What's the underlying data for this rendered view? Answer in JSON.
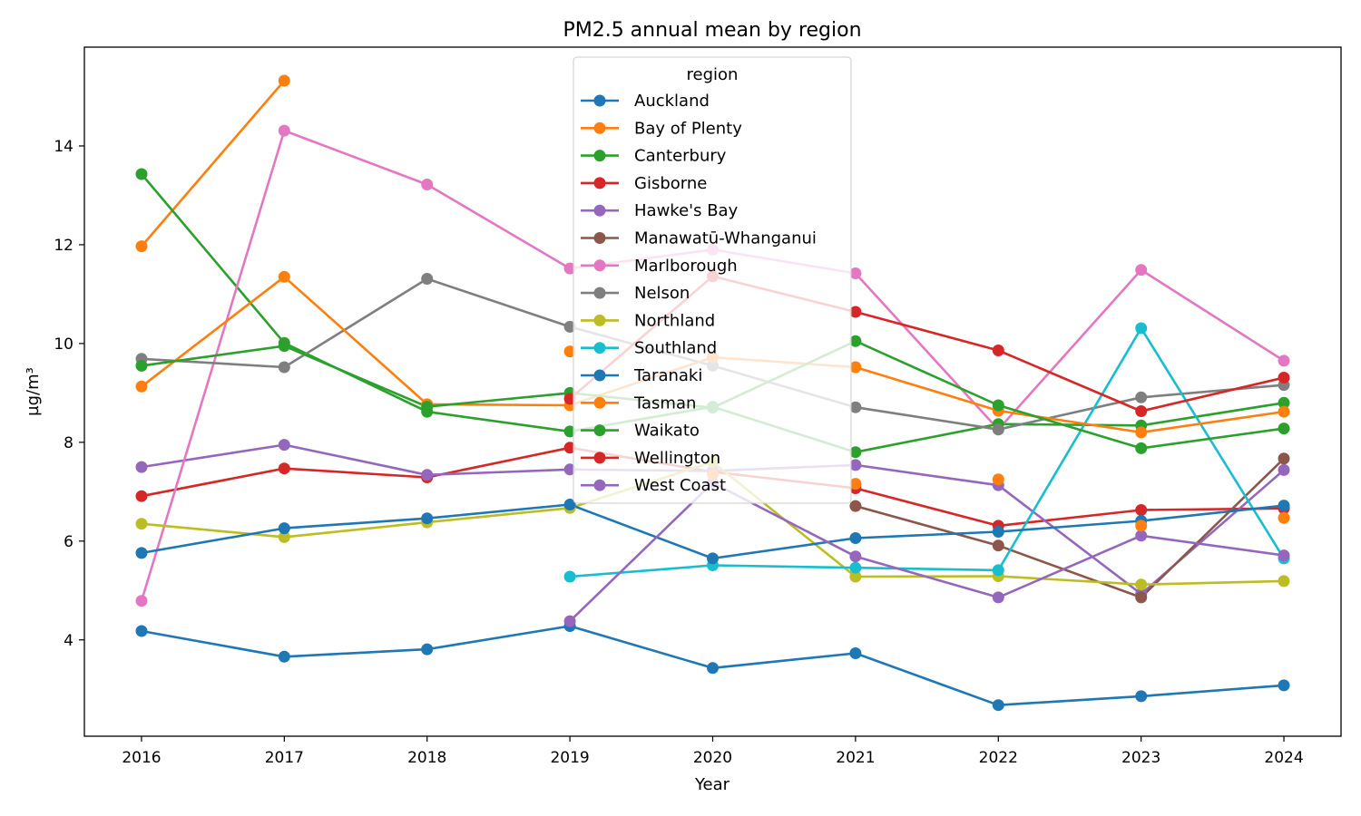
{
  "chart_data": {
    "type": "line",
    "title": "PM2.5 annual mean by region",
    "xlabel": "Year",
    "ylabel": "µg/m³",
    "x": [
      2016,
      2017,
      2018,
      2019,
      2020,
      2021,
      2022,
      2023,
      2024
    ],
    "x_ticks": [
      "2016",
      "2017",
      "2018",
      "2019",
      "2020",
      "2021",
      "2022",
      "2023",
      "2024"
    ],
    "xlim": [
      2015.6,
      2024.4
    ],
    "ylim": [
      2.05,
      16.0
    ],
    "y_ticks": [
      4,
      6,
      8,
      10,
      12,
      14
    ],
    "grid": false,
    "legend": {
      "title": "region",
      "placement": "top-center"
    },
    "series": [
      {
        "name": "Auckland",
        "color": "#1f77b4",
        "values": [
          4.18,
          3.66,
          3.81,
          4.28,
          3.43,
          3.73,
          2.68,
          2.86,
          3.08
        ]
      },
      {
        "name": "Bay of Plenty",
        "color": "#ff7f0e",
        "values": [
          11.97,
          15.32,
          null,
          null,
          null,
          null,
          null,
          null,
          null
        ]
      },
      {
        "name": "Canterbury",
        "color": "#2ca02c",
        "values": [
          13.43,
          10.01,
          8.62,
          8.22,
          8.72,
          7.8,
          8.37,
          8.34,
          8.8
        ]
      },
      {
        "name": "Gisborne",
        "color": "#d62728",
        "values": [
          6.91,
          7.47,
          7.29,
          7.89,
          7.4,
          7.07,
          6.31,
          6.63,
          6.66
        ]
      },
      {
        "name": "Hawke's Bay",
        "color": "#9467bd",
        "values": [
          7.5,
          7.95,
          7.34,
          7.45,
          7.42,
          7.54,
          7.13,
          4.93,
          7.44
        ]
      },
      {
        "name": "Manawatū-Whanganui",
        "color": "#8c564b",
        "values": [
          null,
          null,
          null,
          null,
          null,
          6.71,
          5.91,
          4.86,
          7.67
        ]
      },
      {
        "name": "Marlborough",
        "color": "#e377c2",
        "values": [
          4.79,
          14.31,
          13.22,
          11.52,
          11.9,
          11.42,
          8.26,
          11.49,
          9.65
        ]
      },
      {
        "name": "Nelson",
        "color": "#7f7f7f",
        "values": [
          9.69,
          9.52,
          11.31,
          10.34,
          9.55,
          8.71,
          8.26,
          8.91,
          9.16
        ]
      },
      {
        "name": "Northland",
        "color": "#bcbd22",
        "values": [
          6.35,
          6.08,
          6.38,
          6.67,
          7.6,
          5.28,
          5.29,
          5.12,
          5.19
        ]
      },
      {
        "name": "Southland",
        "color": "#17becf",
        "values": [
          null,
          null,
          null,
          5.28,
          5.51,
          5.46,
          5.41,
          10.31,
          5.65
        ]
      },
      {
        "name": "Taranaki",
        "color": "#1f77b4",
        "values": [
          5.76,
          6.26,
          6.46,
          6.74,
          5.65,
          6.06,
          6.19,
          6.41,
          6.72
        ]
      },
      {
        "name": "Tasman",
        "color": "#ff7f0e",
        "values": [
          9.13,
          11.35,
          8.77,
          8.75,
          9.72,
          9.52,
          8.64,
          8.2,
          8.62
        ]
      },
      {
        "name": "Waikato",
        "color": "#2ca02c",
        "values": [
          9.55,
          9.95,
          8.72,
          9.0,
          8.7,
          10.05,
          8.75,
          7.88,
          8.28
        ]
      },
      {
        "name": "Wellington",
        "color": "#d62728",
        "values": [
          null,
          null,
          null,
          8.88,
          11.36,
          10.64,
          9.86,
          8.63,
          9.31
        ]
      },
      {
        "name": "West Coast",
        "color": "#9467bd",
        "values": [
          null,
          null,
          null,
          4.38,
          7.18,
          5.69,
          4.86,
          6.11,
          5.71
        ]
      }
    ]
  },
  "extra_points": [
    {
      "series": "Tasman",
      "x": 2019,
      "y": 9.84
    },
    {
      "series": "Tasman",
      "x": 2020,
      "y": 7.35
    },
    {
      "series": "Tasman",
      "x": 2021,
      "y": 7.16
    },
    {
      "series": "Tasman",
      "x": 2022,
      "y": 7.25
    },
    {
      "series": "Tasman",
      "x": 2023,
      "y": 6.31
    },
    {
      "series": "Tasman",
      "x": 2024,
      "y": 6.47
    }
  ]
}
